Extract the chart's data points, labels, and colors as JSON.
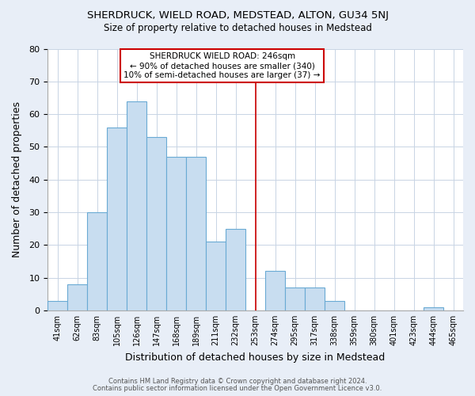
{
  "title": "SHERDRUCK, WIELD ROAD, MEDSTEAD, ALTON, GU34 5NJ",
  "subtitle": "Size of property relative to detached houses in Medstead",
  "xlabel": "Distribution of detached houses by size in Medstead",
  "ylabel": "Number of detached properties",
  "footer1": "Contains HM Land Registry data © Crown copyright and database right 2024.",
  "footer2": "Contains public sector information licensed under the Open Government Licence v3.0.",
  "bin_labels": [
    "41sqm",
    "62sqm",
    "83sqm",
    "105sqm",
    "126sqm",
    "147sqm",
    "168sqm",
    "189sqm",
    "211sqm",
    "232sqm",
    "253sqm",
    "274sqm",
    "295sqm",
    "317sqm",
    "338sqm",
    "359sqm",
    "380sqm",
    "401sqm",
    "423sqm",
    "444sqm",
    "465sqm"
  ],
  "bar_heights": [
    3,
    8,
    30,
    56,
    64,
    53,
    47,
    47,
    21,
    25,
    0,
    12,
    7,
    7,
    3,
    0,
    0,
    0,
    0,
    1,
    0
  ],
  "bar_color": "#c8ddf0",
  "bar_edge_color": "#6aaad4",
  "vline_x_index": 10,
  "vline_color": "#cc0000",
  "annotation_title": "SHERDRUCK WIELD ROAD: 246sqm",
  "annotation_line1": "← 90% of detached houses are smaller (340)",
  "annotation_line2": "10% of semi-detached houses are larger (37) →",
  "annotation_box_color": "#cc0000",
  "ylim": [
    0,
    80
  ],
  "yticks": [
    0,
    10,
    20,
    30,
    40,
    50,
    60,
    70,
    80
  ],
  "background_color": "#e8eef7",
  "plot_bg_color": "#ffffff",
  "grid_color": "#c8d4e4"
}
